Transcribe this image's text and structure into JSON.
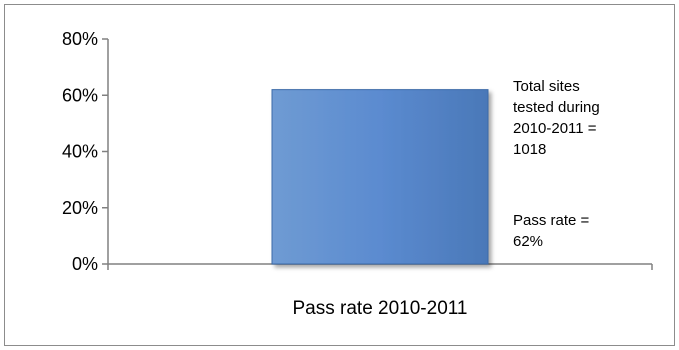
{
  "chart_data": {
    "type": "bar",
    "categories": [
      "Pass rate 2010-2011"
    ],
    "values": [
      62
    ],
    "title": "",
    "xlabel": "",
    "ylabel": "",
    "ylim": [
      0,
      80
    ],
    "yticks": [
      "0%",
      "20%",
      "40%",
      "60%",
      "80%"
    ],
    "ytick_values": [
      0,
      20,
      40,
      60,
      80
    ],
    "grid": false,
    "legend": "none",
    "bar_color": "#4f81bd",
    "annotations": [
      {
        "lines": [
          "Total sites",
          "tested during",
          "2010-2011 =",
          "1018"
        ]
      },
      {
        "lines": [
          "Pass rate =",
          "62%"
        ]
      }
    ]
  }
}
